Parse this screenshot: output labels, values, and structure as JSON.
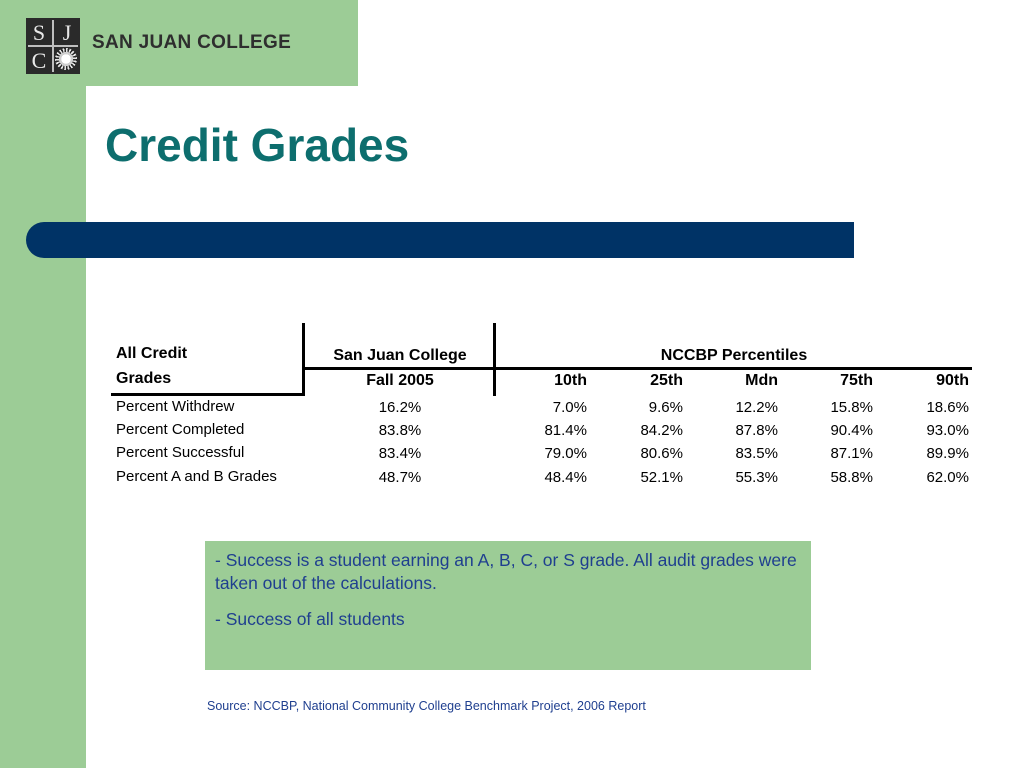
{
  "logo": {
    "letters": [
      "S",
      "J",
      "C"
    ],
    "name": "SAN JUAN COLLEGE"
  },
  "title": "Credit Grades",
  "table": {
    "row_header": [
      "All Credit",
      "Grades"
    ],
    "sjc_header": [
      "San Juan College",
      "Fall 2005"
    ],
    "nccbp_header": "NCCBP Percentiles",
    "percentile_labels": [
      "10th",
      "25th",
      "Mdn",
      "75th",
      "90th"
    ],
    "rows": [
      {
        "label": "Percent Withdrew",
        "sjc": "16.2%",
        "p": [
          "7.0%",
          "9.6%",
          "12.2%",
          "15.8%",
          "18.6%"
        ]
      },
      {
        "label": "Percent Completed",
        "sjc": "83.8%",
        "p": [
          "81.4%",
          "84.2%",
          "87.8%",
          "90.4%",
          "93.0%"
        ]
      },
      {
        "label": "Percent Successful",
        "sjc": "83.4%",
        "p": [
          "79.0%",
          "80.6%",
          "83.5%",
          "87.1%",
          "89.9%"
        ]
      },
      {
        "label": "Percent A and B Grades",
        "sjc": "48.7%",
        "p": [
          "48.4%",
          "52.1%",
          "55.3%",
          "58.8%",
          "62.0%"
        ]
      }
    ]
  },
  "notes": [
    "- Success is a student earning an A, B, C, or S grade.  All audit grades were taken out of the calculations.",
    "- Success of all students"
  ],
  "source": "Source: NCCBP, National Community College Benchmark Project, 2006 Report",
  "colors": {
    "green": "#9ccc96",
    "title_teal": "#0d6e6e",
    "bar_navy": "#003366",
    "note_text": "#1f3f8f"
  }
}
